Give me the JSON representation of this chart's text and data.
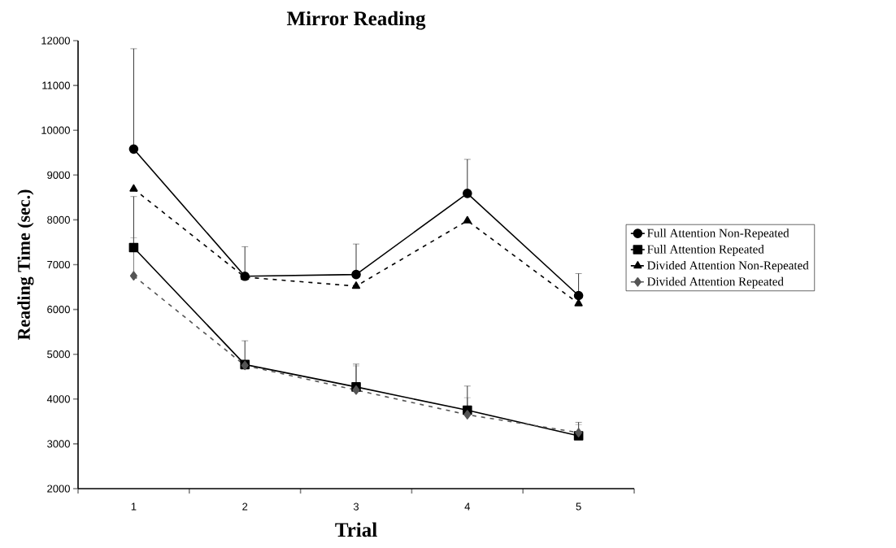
{
  "chart_data": {
    "type": "line",
    "title": "Mirror Reading",
    "xlabel": "Trial",
    "ylabel": "Reading Time (sec.)",
    "categories": [
      "1",
      "2",
      "3",
      "4",
      "5"
    ],
    "ylim": [
      2000,
      12000
    ],
    "yticks": [
      2000,
      3000,
      4000,
      5000,
      6000,
      7000,
      8000,
      9000,
      10000,
      11000,
      12000
    ],
    "grid": false,
    "legend": "right",
    "series": [
      {
        "name": "Full Attention Non-Repeated",
        "color": "#000000",
        "marker": "circle",
        "line_style": "solid",
        "values": [
          9580,
          6740,
          6780,
          8590,
          6310
        ],
        "errors": [
          [
            9580,
            11820
          ],
          [
            6740,
            7400
          ],
          [
            6780,
            7460
          ],
          [
            8590,
            9350
          ],
          [
            6310,
            6800
          ]
        ]
      },
      {
        "name": "Full Attention Repeated",
        "color": "#000000",
        "marker": "square",
        "line_style": "solid",
        "values": [
          7380,
          4770,
          4270,
          3750,
          3180
        ],
        "errors": [
          [
            7380,
            8520
          ],
          [
            4770,
            5300
          ],
          [
            4270,
            4780
          ],
          [
            3750,
            4290
          ],
          [
            3180,
            3480
          ]
        ]
      },
      {
        "name": "Divided Attention Non-Repeated",
        "color": "#000000",
        "marker": "triangle",
        "line_style": "dashed",
        "values": [
          8690,
          6720,
          6520,
          7980,
          6130
        ]
      },
      {
        "name": "Divided Attention Repeated",
        "color": "#555555",
        "marker": "diamond",
        "line_style": "dashed",
        "values": [
          6750,
          4750,
          4200,
          3650,
          3250
        ],
        "errors": [
          [
            6750,
            7600
          ],
          null,
          [
            4200,
            4740
          ],
          [
            3650,
            4030
          ],
          [
            3250,
            3430
          ]
        ]
      }
    ]
  }
}
